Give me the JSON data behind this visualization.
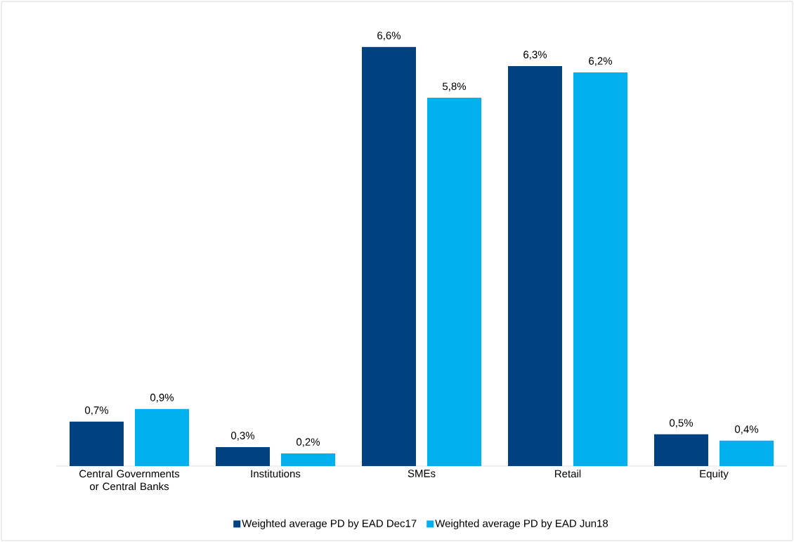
{
  "chart_data": {
    "type": "bar",
    "categories": [
      "Central Governments or Central Banks",
      "Institutions",
      "SMEs",
      "Retail",
      "Equity"
    ],
    "series": [
      {
        "name": "Weighted average PD by EAD Dec17",
        "color": "#00427f",
        "values": [
          0.7,
          0.3,
          6.6,
          6.3,
          0.5
        ],
        "value_labels": [
          "0,7%",
          "0,3%",
          "6,6%",
          "6,3%",
          "0,5%"
        ]
      },
      {
        "name": "Weighted average PD by EAD Jun18",
        "color": "#00b0ef",
        "values": [
          0.9,
          0.2,
          5.8,
          6.2,
          0.4
        ],
        "value_labels": [
          "0,9%",
          "0,2%",
          "5,8%",
          "6,2%",
          "0,4%"
        ]
      }
    ],
    "legend": "bottom"
  }
}
